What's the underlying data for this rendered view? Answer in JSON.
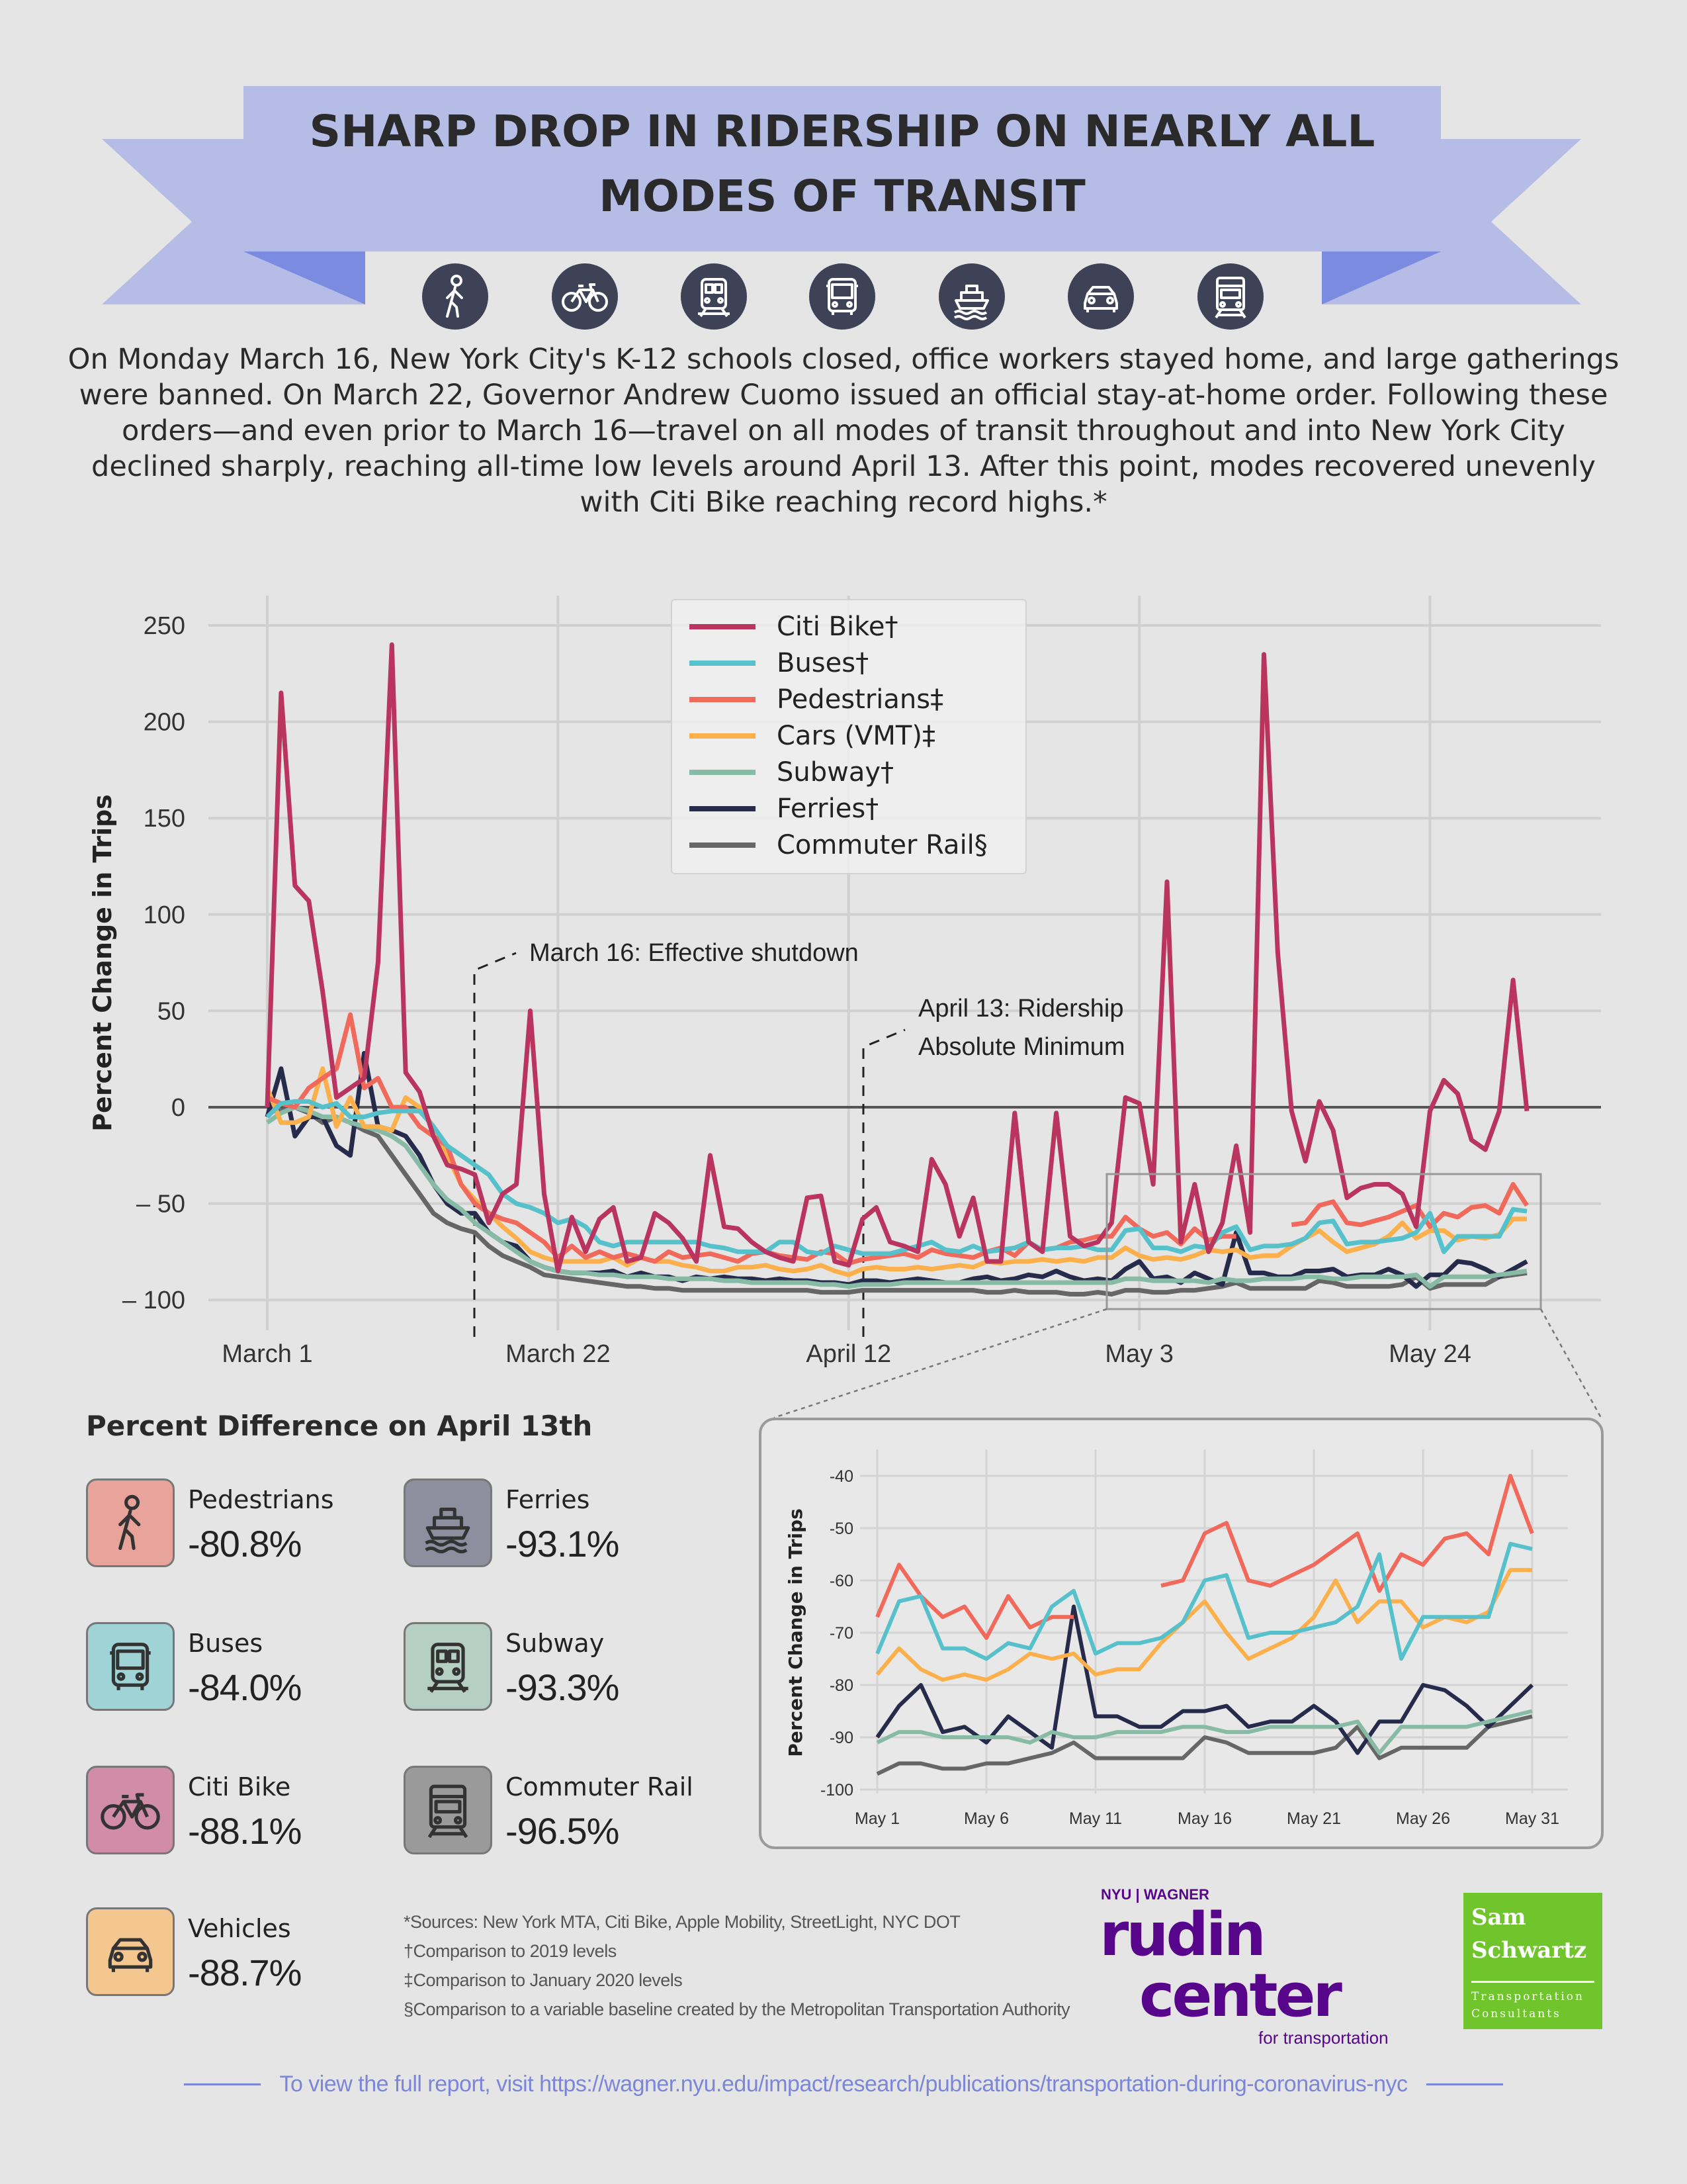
{
  "title": "SHARP DROP IN RIDERSHIP ON NEARLY ALL MODES OF TRANSIT",
  "title_lines": [
    "SHARP DROP IN RIDERSHIP ON NEARLY ALL",
    "MODES OF TRANSIT"
  ],
  "mode_icons": [
    "pedestrian-icon",
    "bicycle-icon",
    "subway-icon",
    "bus-icon",
    "ferry-icon",
    "car-icon",
    "commuter-rail-icon"
  ],
  "intro": "On Monday March 16, New York City's K-12 schools closed, office workers stayed home, and large gatherings were banned. On March 22, Governor Andrew Cuomo issued an official stay-at-home order. Following these orders—and even prior to March 16—travel on all modes of transit throughout and into New York City declined sharply, reaching all-time low levels around April 13. After this point, modes recovered unevenly with Citi Bike reaching record highs.*",
  "colors": {
    "background": "#e5e5e5",
    "banner": "#b5bde6",
    "banner_tail": "#7a8be0",
    "icon_circle": "#3e4257"
  },
  "chart_data": {
    "type": "line",
    "title": "",
    "xlabel": "",
    "ylabel": "Percent Change in Trips",
    "ylim": [
      -112,
      270
    ],
    "x_start": "March 1",
    "x_end": "May 31",
    "x_frequency": "daily",
    "xticks": [
      {
        "day_index": 0,
        "label": "March 1"
      },
      {
        "day_index": 21,
        "label": "March 22"
      },
      {
        "day_index": 42,
        "label": "April 12"
      },
      {
        "day_index": 63,
        "label": "May 3"
      },
      {
        "day_index": 84,
        "label": "May 24"
      }
    ],
    "yticks": [
      {
        "value": 250,
        "label": "250"
      },
      {
        "value": 200,
        "label": "200"
      },
      {
        "value": 150,
        "label": "150"
      },
      {
        "value": 100,
        "label": "100"
      },
      {
        "value": 50,
        "label": "50"
      },
      {
        "value": 0,
        "label": "0"
      },
      {
        "value": -50,
        "label": "– 50"
      },
      {
        "value": -100,
        "label": "– 100"
      }
    ],
    "grid": true,
    "legend_position": "top-center",
    "annotations": [
      {
        "day_index": 15,
        "lines": [
          "March 16: Effective shutdown"
        ]
      },
      {
        "day_index": 43,
        "lines": [
          "April 13: Ridership",
          "Absolute Minimum"
        ]
      }
    ],
    "series": [
      {
        "name": "Citi Bike†",
        "color": "#b93560",
        "values": [
          0,
          215,
          115,
          107,
          60,
          5,
          10,
          15,
          75,
          240,
          18,
          8,
          -15,
          -30,
          -32,
          -35,
          -60,
          -45,
          -40,
          50,
          -45,
          -85,
          -57,
          -75,
          -58,
          -52,
          -80,
          -78,
          -55,
          -60,
          -68,
          -80,
          -25,
          -62,
          -63,
          -70,
          -75,
          -78,
          -80,
          -47,
          -46,
          -80,
          -82,
          -58,
          -52,
          -70,
          -72,
          -75,
          -27,
          -40,
          -67,
          -47,
          -80,
          -80,
          -3,
          -70,
          -75,
          -3,
          -67,
          -72,
          -70,
          -60,
          5,
          2,
          -40,
          117,
          -70,
          -40,
          -75,
          -60,
          -20,
          -65,
          235,
          80,
          -2,
          -28,
          3,
          -12,
          -47,
          -42,
          -40,
          -40,
          -45,
          -62,
          -2,
          14,
          7,
          -17,
          -22,
          -2,
          66,
          -2
        ]
      },
      {
        "name": "Buses†",
        "color": "#56c1cb",
        "values": [
          -5,
          2,
          3,
          3,
          0,
          2,
          -5,
          -5,
          -3,
          -2,
          -2,
          -2,
          -10,
          -20,
          -25,
          -30,
          -35,
          -45,
          -50,
          -52,
          -55,
          -60,
          -58,
          -62,
          -70,
          -72,
          -70,
          -70,
          -70,
          -70,
          -70,
          -70,
          -72,
          -73,
          -75,
          -75,
          -75,
          -70,
          -70,
          -75,
          -76,
          -72,
          -74,
          -76,
          -76,
          -76,
          -74,
          -72,
          -70,
          -74,
          -75,
          -72,
          -75,
          -74,
          -73,
          -70,
          -74,
          -73,
          -73,
          -72,
          -74,
          -74,
          -64,
          -63,
          -73,
          -73,
          -75,
          -72,
          -73,
          -65,
          -62,
          -74,
          -72,
          -72,
          -71,
          -68,
          -60,
          -59,
          -71,
          -70,
          -70,
          -69,
          -68,
          -65,
          -55,
          -75,
          -67,
          -67,
          -67,
          -67,
          -53,
          -54
        ]
      },
      {
        "name": "Pedestrians‡",
        "color": "#f0695b",
        "values": [
          5,
          2,
          0,
          10,
          15,
          20,
          48,
          10,
          15,
          0,
          0,
          -10,
          -15,
          -20,
          -40,
          -50,
          -55,
          -58,
          -60,
          -65,
          -70,
          -78,
          -72,
          -78,
          -75,
          -78,
          -76,
          -78,
          -80,
          -75,
          -78,
          -77,
          -76,
          -78,
          -80,
          -76,
          -75,
          -77,
          -78,
          -79,
          -75,
          -76,
          -81,
          -79,
          -78,
          -77,
          -76,
          -78,
          -74,
          -76,
          -77,
          -78,
          -75,
          -73,
          -77,
          -70,
          -74,
          -73,
          -70,
          -69,
          -67,
          -67,
          -57,
          -63,
          -67,
          -65,
          -71,
          -63,
          -69,
          -67,
          -67,
          null,
          null,
          null,
          -61,
          -60,
          -51,
          -49,
          -60,
          -61,
          -59,
          -57,
          -54,
          -51,
          -62,
          -55,
          -57,
          -52,
          -51,
          -55,
          -40,
          -51
        ]
      },
      {
        "name": "Cars (VMT)‡",
        "color": "#fbb04c",
        "values": [
          10,
          -8,
          -8,
          -5,
          20,
          -10,
          5,
          -10,
          -10,
          -12,
          5,
          0,
          -10,
          -25,
          -40,
          -48,
          -55,
          -62,
          -68,
          -75,
          -78,
          -80,
          -80,
          -80,
          -80,
          -78,
          -82,
          -78,
          -80,
          -80,
          -82,
          -83,
          -85,
          -85,
          -83,
          -83,
          -82,
          -84,
          -85,
          -84,
          -82,
          -85,
          -87,
          -84,
          -83,
          -84,
          -84,
          -83,
          -84,
          -83,
          -82,
          -83,
          -80,
          -81,
          -80,
          -80,
          -79,
          -80,
          -79,
          -80,
          -78,
          -78,
          -73,
          -77,
          -79,
          -78,
          -79,
          -77,
          -74,
          -75,
          -74,
          -78,
          -77,
          -77,
          -72,
          -68,
          -64,
          -70,
          -75,
          -73,
          -71,
          -67,
          -60,
          -68,
          -64,
          -64,
          -69,
          -67,
          -68,
          -66,
          -58,
          -58
        ]
      },
      {
        "name": "Subway†",
        "color": "#88bba6",
        "values": [
          -8,
          -3,
          0,
          -2,
          -5,
          -5,
          -8,
          -10,
          -12,
          -15,
          -20,
          -30,
          -40,
          -48,
          -53,
          -60,
          -65,
          -70,
          -75,
          -80,
          -83,
          -85,
          -86,
          -86,
          -87,
          -87,
          -88,
          -88,
          -88,
          -89,
          -89,
          -89,
          -89,
          -90,
          -90,
          -91,
          -91,
          -91,
          -91,
          -91,
          -92,
          -92,
          -93,
          -92,
          -92,
          -92,
          -91,
          -91,
          -91,
          -91,
          -91,
          -91,
          -91,
          -91,
          -91,
          -91,
          -91,
          -91,
          -91,
          -91,
          -91,
          -91,
          -89,
          -89,
          -90,
          -90,
          -90,
          -90,
          -91,
          -89,
          -90,
          -90,
          -89,
          -89,
          -89,
          -88,
          -88,
          -89,
          -89,
          -88,
          -88,
          -88,
          -88,
          -87,
          -93,
          -88,
          -88,
          -88,
          -88,
          -87,
          -86,
          -85
        ]
      },
      {
        "name": "Ferries†",
        "color": "#262b4b",
        "values": [
          -5,
          20,
          -15,
          -5,
          -5,
          -20,
          -25,
          28,
          -10,
          -12,
          -15,
          -25,
          -40,
          -50,
          -55,
          -55,
          -65,
          -70,
          -72,
          -80,
          -83,
          -85,
          -86,
          -86,
          -86,
          -85,
          -88,
          -86,
          -88,
          -88,
          -90,
          -88,
          -89,
          -88,
          -89,
          -89,
          -90,
          -89,
          -90,
          -90,
          -91,
          -91,
          -92,
          -90,
          -90,
          -91,
          -90,
          -89,
          -90,
          -91,
          -91,
          -89,
          -88,
          -90,
          -89,
          -87,
          -88,
          -85,
          -88,
          -90,
          -89,
          -90,
          -84,
          -80,
          -89,
          -88,
          -91,
          -86,
          -89,
          -92,
          -65,
          -86,
          -86,
          -88,
          -88,
          -85,
          -85,
          -84,
          -88,
          -87,
          -87,
          -84,
          -87,
          -93,
          -87,
          -87,
          -80,
          -81,
          -84,
          -88,
          -84,
          -80
        ]
      },
      {
        "name": "Commuter Rail§",
        "color": "#666666",
        "values": [
          -2,
          -2,
          0,
          -3,
          -8,
          -5,
          -8,
          -12,
          -15,
          -25,
          -35,
          -45,
          -55,
          -60,
          -63,
          -65,
          -72,
          -77,
          -80,
          -83,
          -87,
          -88,
          -89,
          -90,
          -91,
          -92,
          -93,
          -93,
          -94,
          -94,
          -95,
          -95,
          -95,
          -95,
          -95,
          -95,
          -95,
          -95,
          -95,
          -95,
          -96,
          -96,
          -96,
          -95,
          -95,
          -95,
          -95,
          -95,
          -95,
          -95,
          -95,
          -95,
          -96,
          -96,
          -95,
          -96,
          -96,
          -96,
          -97,
          -97,
          -96,
          -97,
          -95,
          -95,
          -96,
          -96,
          -95,
          -95,
          -94,
          -93,
          -91,
          -94,
          -94,
          -94,
          -94,
          -94,
          -90,
          -91,
          -93,
          -93,
          -93,
          -93,
          -92,
          -88,
          -94,
          -92,
          -92,
          -92,
          -92,
          -88,
          -87,
          -86
        ]
      }
    ],
    "inset": {
      "ylabel": "Percent Change in Trips",
      "ylim": [
        -100,
        -40
      ],
      "range_start_day_index": 61,
      "range_end_day_index": 91,
      "excluded_series": [
        "Citi Bike†"
      ],
      "yticks": [
        {
          "value": -40,
          "label": "-40"
        },
        {
          "value": -50,
          "label": "-50"
        },
        {
          "value": -60,
          "label": "-60"
        },
        {
          "value": -70,
          "label": "-70"
        },
        {
          "value": -80,
          "label": "-80"
        },
        {
          "value": -90,
          "label": "-90"
        },
        {
          "value": -100,
          "label": "-100"
        }
      ],
      "xticks": [
        {
          "offset": 0,
          "label": "May 1"
        },
        {
          "offset": 5,
          "label": "May 6"
        },
        {
          "offset": 10,
          "label": "May 11"
        },
        {
          "offset": 15,
          "label": "May 16"
        },
        {
          "offset": 20,
          "label": "May 21"
        },
        {
          "offset": 25,
          "label": "May 26"
        },
        {
          "offset": 30,
          "label": "May 31"
        }
      ]
    }
  },
  "april13": {
    "title": "Percent Difference on April 13th",
    "stats": [
      {
        "label": "Pedestrians",
        "value": "-80.8%",
        "icon": "pedestrian-icon",
        "color": "#e8a39a"
      },
      {
        "label": "Ferries",
        "value": "-93.1%",
        "icon": "ferry-icon",
        "color": "#8d8f9e"
      },
      {
        "label": "Buses",
        "value": "-84.0%",
        "icon": "bus-icon",
        "color": "#9fd3d6"
      },
      {
        "label": "Subway",
        "value": "-93.3%",
        "icon": "subway-icon",
        "color": "#b5cfc4"
      },
      {
        "label": "Citi Bike",
        "value": "-88.1%",
        "icon": "bicycle-icon",
        "color": "#d18ca6"
      },
      {
        "label": "Commuter Rail",
        "value": "-96.5%",
        "icon": "commuter-rail-icon",
        "color": "#9a9a9a"
      },
      {
        "label": "Vehicles",
        "value": "-88.7%",
        "icon": "car-icon",
        "color": "#f3c78f"
      }
    ]
  },
  "footnotes": [
    "*Sources: New York MTA, Citi Bike, Apple Mobility, StreetLight, NYC DOT",
    "†Comparison to 2019 levels",
    "‡Comparison to January 2020 levels",
    "§Comparison to a variable baseline created by the Metropolitan Transportation Authority"
  ],
  "logos": {
    "rudin": {
      "top": "NYU | WAGNER",
      "line1": "rudin",
      "line2": "center",
      "sub": "for transportation"
    },
    "sam_schwartz": {
      "line1": "Sam",
      "line2": "Schwartz",
      "sub1": "Transportation",
      "sub2": "Consultants"
    }
  },
  "footer": "To view the full report, visit https://wagner.nyu.edu/impact/research/publications/transportation-during-coronavirus-nyc"
}
